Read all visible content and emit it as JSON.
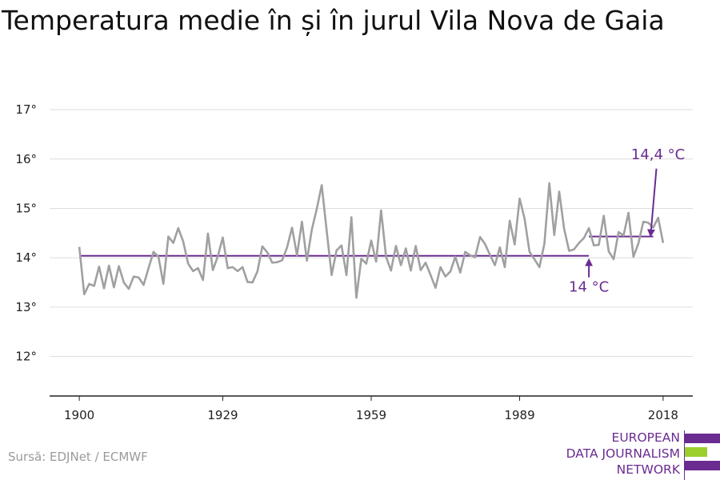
{
  "title": "Temperatura medie în și în jurul Vila Nova de Gaia",
  "source": "Sursă: EDJNet / ECMWF",
  "logo": {
    "lines": [
      "EUROPEAN",
      "DATA JOURNALISM",
      "NETWORK"
    ],
    "colors": {
      "purple": "#6a2c91",
      "green": "#9ccf2e"
    }
  },
  "colors": {
    "series": "#a0a0a0",
    "reference": "#6a2c91",
    "grid": "#dddddd",
    "axis": "#222222"
  },
  "chart_data": {
    "type": "line",
    "title": "Temperatura medie în și în jurul Vila Nova de Gaia",
    "xlabel": "",
    "ylabel": "",
    "x_ticks": [
      1900,
      1929,
      1959,
      1989,
      2018
    ],
    "x_tick_labels": [
      "1900",
      "1929",
      "1959",
      "1989",
      "2018"
    ],
    "y_ticks": [
      12,
      13,
      14,
      15,
      16,
      17
    ],
    "y_tick_labels": [
      "12°",
      "13°",
      "14°",
      "15°",
      "16°",
      "17°"
    ],
    "xlim": [
      1894,
      2024
    ],
    "ylim": [
      11.2,
      17.6
    ],
    "grid": true,
    "series": [
      {
        "x_start": 1900,
        "values": [
          14.22,
          13.26,
          13.47,
          13.43,
          13.82,
          13.38,
          13.84,
          13.4,
          13.83,
          13.5,
          13.37,
          13.62,
          13.6,
          13.45,
          13.79,
          14.12,
          14.02,
          13.47,
          14.43,
          14.3,
          14.6,
          14.33,
          13.88,
          13.73,
          13.79,
          13.55,
          14.49,
          13.75,
          14.03,
          14.41,
          13.79,
          13.81,
          13.73,
          13.81,
          13.51,
          13.5,
          13.72,
          14.23,
          14.11,
          13.9,
          13.91,
          13.95,
          14.21,
          14.61,
          14.05,
          14.73,
          13.94,
          14.57,
          14.99,
          15.47,
          14.55,
          13.65,
          14.15,
          14.25,
          13.65,
          14.82,
          13.19,
          13.98,
          13.88,
          14.35,
          13.92,
          14.96,
          14.02,
          13.74,
          14.24,
          13.85,
          14.19,
          13.74,
          14.24,
          13.75,
          13.9,
          13.65,
          13.39,
          13.81,
          13.62,
          13.72,
          14.02,
          13.7,
          14.12,
          14.05,
          14.01,
          14.42,
          14.28,
          14.06,
          13.85,
          14.21,
          13.81,
          14.75,
          14.27,
          15.2,
          14.79,
          14.12,
          13.97,
          13.81,
          14.28,
          15.51,
          14.46,
          15.34,
          14.58,
          14.14,
          14.17,
          14.3,
          14.4,
          14.6,
          14.25,
          14.26,
          14.85,
          14.13,
          13.97,
          14.52,
          14.45,
          14.91,
          14.02,
          14.29,
          14.73,
          14.71,
          14.61,
          14.81,
          14.3
        ]
      }
    ],
    "reference_lines": [
      {
        "x_start": 1900,
        "x_end": 2003,
        "value": 14.04
      },
      {
        "x_start": 2003,
        "x_end": 2016,
        "value": 14.43
      }
    ],
    "annotations": [
      {
        "text": "14 °C",
        "value": 14.04
      },
      {
        "text": "14,4 °C",
        "value": 14.43
      }
    ]
  }
}
